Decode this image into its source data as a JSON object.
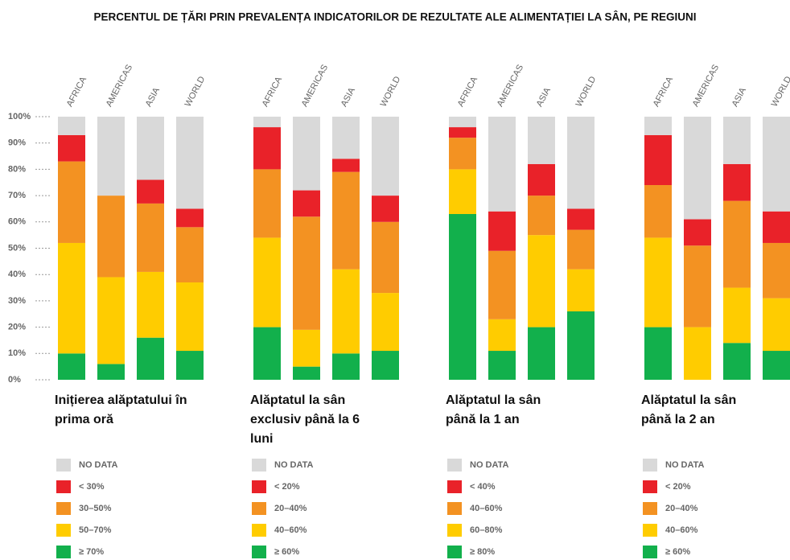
{
  "title": "PERCENTUL DE ȚĂRI PRIN PREVALENȚA INDICATORILOR DE REZULTATE ALE ALIMENTAȚIEI LA SÂN, PE REGIUNI",
  "chart_data": [
    {
      "type": "stacked_bar",
      "title": "Inițierea alăptatului în prima oră",
      "categories": [
        "AFRICA",
        "AMERICAS",
        "ASIA",
        "WORLD"
      ],
      "ylim": [
        0,
        100
      ],
      "yticks": [
        {
          "value": 0,
          "label": "0%"
        },
        {
          "value": 10,
          "label": "10%"
        },
        {
          "value": 20,
          "label": "20%"
        },
        {
          "value": 30,
          "label": "30%"
        },
        {
          "value": 40,
          "label": "40%"
        },
        {
          "value": 50,
          "label": "50%"
        },
        {
          "value": 60,
          "label": "60%"
        },
        {
          "value": 70,
          "label": "70%"
        },
        {
          "value": 80,
          "label": "80%"
        },
        {
          "value": 90,
          "label": "90%"
        },
        {
          "value": 100,
          "label": "100%"
        }
      ],
      "series": [
        {
          "name": "≥ 70%",
          "color": "#12b04c",
          "values": [
            10,
            6,
            16,
            11
          ]
        },
        {
          "name": "50–70%",
          "color": "#ffcc00",
          "values": [
            42,
            33,
            25,
            26
          ]
        },
        {
          "name": "30–50%",
          "color": "#f39222",
          "values": [
            31,
            31,
            26,
            21
          ]
        },
        {
          "name": "< 30%",
          "color": "#e92229",
          "values": [
            10,
            0,
            9,
            7
          ]
        },
        {
          "name": "NO DATA",
          "color": "#d9d9d9",
          "values": [
            7,
            30,
            24,
            35
          ]
        }
      ]
    },
    {
      "type": "stacked_bar",
      "title": "Alăptatul la sân exclusiv până la 6 luni",
      "categories": [
        "AFRICA",
        "AMERICAS",
        "ASIA",
        "WORLD"
      ],
      "series": [
        {
          "name": "≥ 60%",
          "color": "#12b04c",
          "values": [
            20,
            5,
            10,
            11
          ]
        },
        {
          "name": "40–60%",
          "color": "#ffcc00",
          "values": [
            34,
            14,
            32,
            22
          ]
        },
        {
          "name": "20–40%",
          "color": "#f39222",
          "values": [
            26,
            43,
            37,
            27
          ]
        },
        {
          "name": "< 20%",
          "color": "#e92229",
          "values": [
            16,
            10,
            5,
            10
          ]
        },
        {
          "name": "NO DATA",
          "color": "#d9d9d9",
          "values": [
            4,
            28,
            16,
            30
          ]
        }
      ]
    },
    {
      "type": "stacked_bar",
      "title": "Alăptatul la sân până la 1 an",
      "categories": [
        "AFRICA",
        "AMERICAS",
        "ASIA",
        "WORLD"
      ],
      "series": [
        {
          "name": "≥ 80%",
          "color": "#12b04c",
          "values": [
            63,
            11,
            20,
            26
          ]
        },
        {
          "name": "60–80%",
          "color": "#ffcc00",
          "values": [
            17,
            12,
            35,
            16
          ]
        },
        {
          "name": "40–60%",
          "color": "#f39222",
          "values": [
            12,
            26,
            15,
            15
          ]
        },
        {
          "name": "< 40%",
          "color": "#e92229",
          "values": [
            4,
            15,
            12,
            8
          ]
        },
        {
          "name": "NO DATA",
          "color": "#d9d9d9",
          "values": [
            4,
            36,
            18,
            35
          ]
        }
      ]
    },
    {
      "type": "stacked_bar",
      "title": "Alăptatul la sân până la 2 an",
      "categories": [
        "AFRICA",
        "AMERICAS",
        "ASIA",
        "WORLD"
      ],
      "series": [
        {
          "name": "≥ 60%",
          "color": "#12b04c",
          "values": [
            20,
            0,
            14,
            11
          ]
        },
        {
          "name": "40–60%",
          "color": "#ffcc00",
          "values": [
            34,
            20,
            21,
            20
          ]
        },
        {
          "name": "20–40%",
          "color": "#f39222",
          "values": [
            20,
            31,
            33,
            21
          ]
        },
        {
          "name": "< 20%",
          "color": "#e92229",
          "values": [
            19,
            10,
            14,
            12
          ]
        },
        {
          "name": "NO DATA",
          "color": "#d9d9d9",
          "values": [
            7,
            39,
            18,
            36
          ]
        }
      ]
    }
  ]
}
